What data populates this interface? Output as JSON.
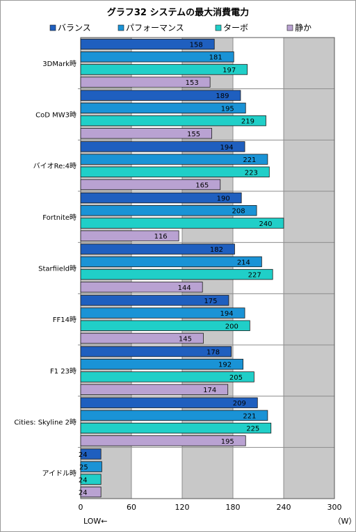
{
  "chart_data": {
    "type": "bar",
    "orientation": "horizontal",
    "title": "グラフ32 システムの最大消費電力",
    "xlim": [
      0,
      300
    ],
    "xticks": [
      0,
      60,
      120,
      180,
      240,
      300
    ],
    "unit_label": "（W）",
    "low_note": "LOW←",
    "grid": true,
    "legend_position": "top",
    "categories": [
      "3DMark時",
      "CoD MW3時",
      "バイオRe:4時",
      "Fortnite時",
      "Starfiield時",
      "FF14時",
      "F1 23時",
      "Cities: Skyline 2時",
      "アイドル時"
    ],
    "series": [
      {
        "name": "バランス",
        "color": "#1f5fbf",
        "values": [
          158,
          189,
          194,
          190,
          182,
          175,
          178,
          209,
          24
        ]
      },
      {
        "name": "パフォーマンス",
        "color": "#1a93d6",
        "values": [
          181,
          195,
          221,
          208,
          214,
          194,
          192,
          221,
          25
        ]
      },
      {
        "name": "ターボ",
        "color": "#20cfc8",
        "values": [
          197,
          219,
          223,
          240,
          227,
          200,
          205,
          225,
          24
        ]
      },
      {
        "name": "静か",
        "color": "#b9a2d2",
        "values": [
          153,
          155,
          165,
          116,
          144,
          145,
          174,
          195,
          24
        ]
      }
    ]
  }
}
